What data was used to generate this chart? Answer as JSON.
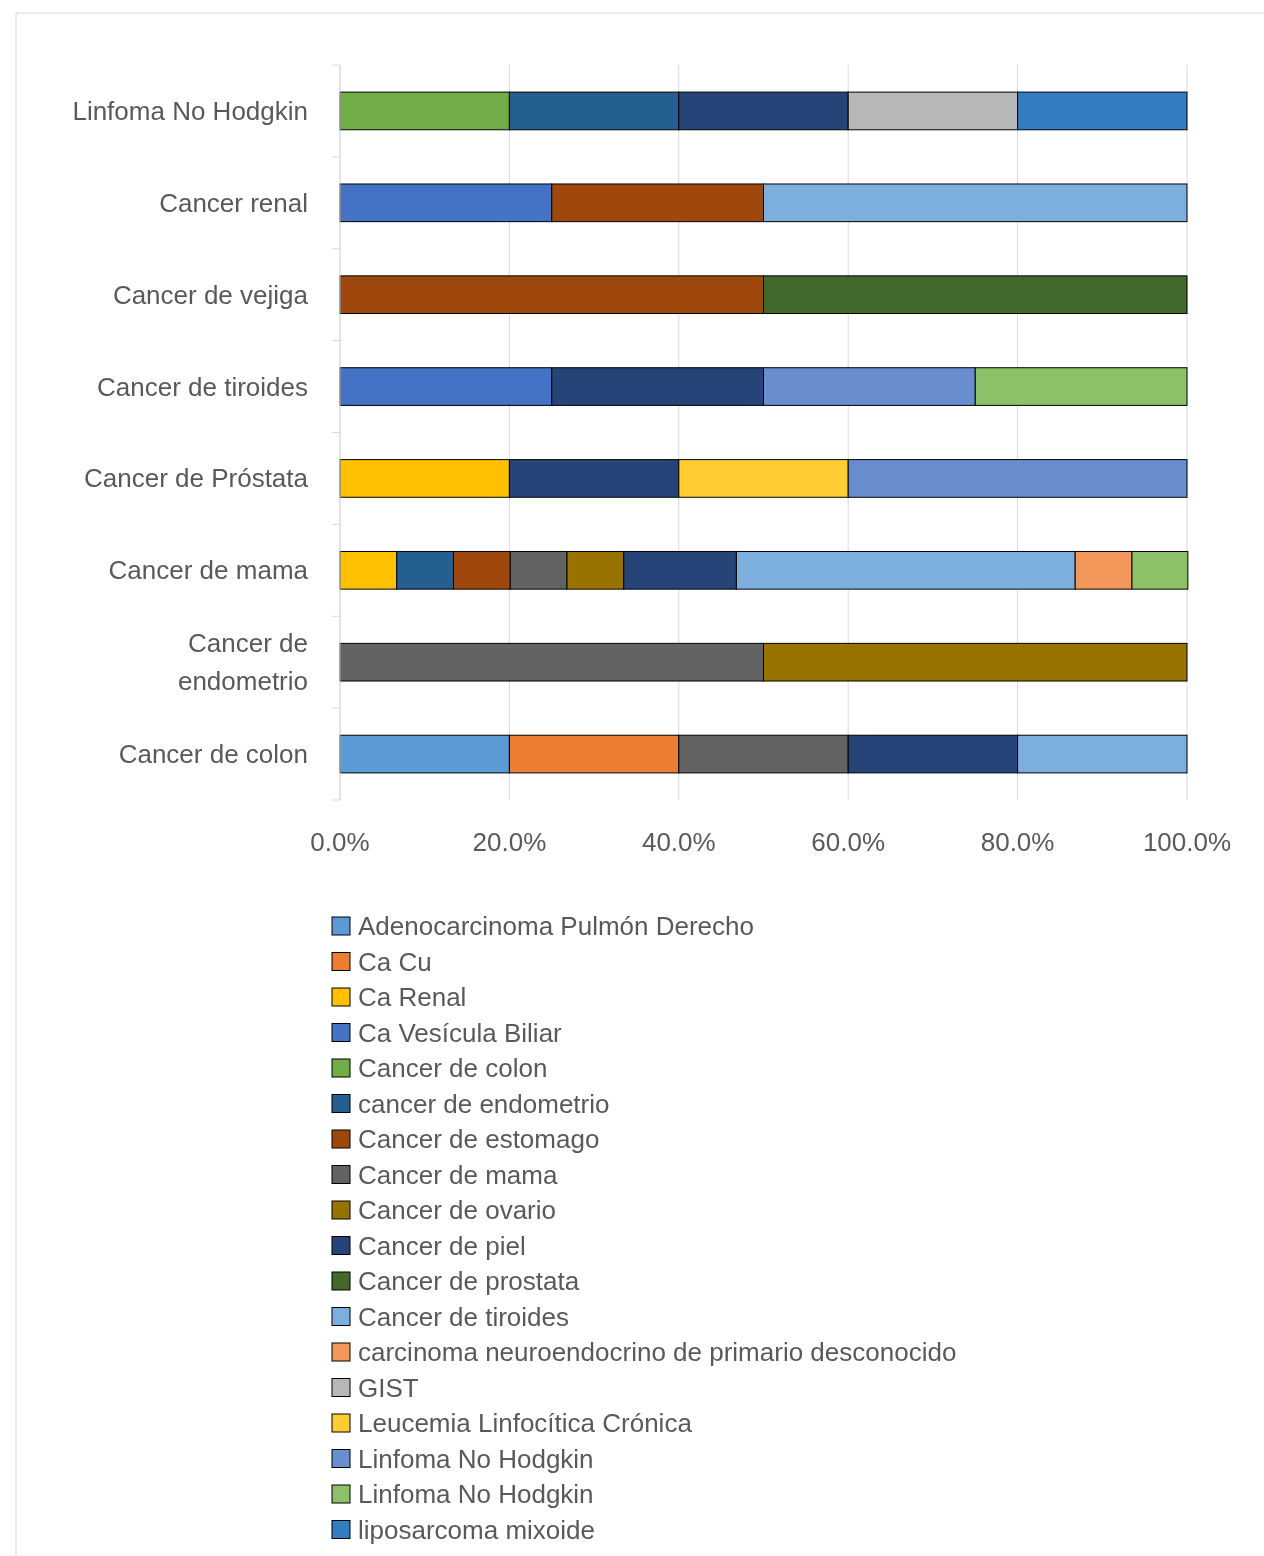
{
  "chart_data": {
    "type": "bar",
    "orientation": "horizontal",
    "stacked": true,
    "categories": [
      "Linfoma No Hodgkin",
      "Cancer renal",
      "Cancer de vejiga",
      "Cancer de tiroides",
      "Cancer de Próstata",
      "Cancer de mama",
      "Cancer de endometrio",
      "Cancer de colon"
    ],
    "series": [
      {
        "name": "Adenocarcinoma Pulmón Derecho",
        "color": "#5b9bd5",
        "values": [
          null,
          null,
          null,
          null,
          null,
          null,
          null,
          20
        ]
      },
      {
        "name": "Ca Cu",
        "color": "#ed7d31",
        "values": [
          null,
          null,
          null,
          null,
          null,
          null,
          null,
          20
        ]
      },
      {
        "name": "Ca Renal",
        "color": "#ffc000",
        "values": [
          null,
          null,
          null,
          null,
          20,
          6.7,
          null,
          null
        ]
      },
      {
        "name": "Ca Vesícula Biliar",
        "color": "#4472c4",
        "values": [
          null,
          25,
          null,
          25,
          null,
          null,
          null,
          null
        ]
      },
      {
        "name": "Cancer de colon",
        "color": "#70ad47",
        "values": [
          20,
          null,
          null,
          null,
          null,
          null,
          null,
          null
        ]
      },
      {
        "name": "cancer de endometrio",
        "color": "#255e91",
        "values": [
          20,
          null,
          null,
          null,
          null,
          6.7,
          null,
          null
        ]
      },
      {
        "name": "Cancer de estomago",
        "color": "#9e480e",
        "values": [
          null,
          25,
          50,
          null,
          null,
          6.7,
          null,
          null
        ]
      },
      {
        "name": "Cancer de mama",
        "color": "#636363",
        "values": [
          null,
          null,
          null,
          null,
          null,
          6.7,
          50,
          20
        ]
      },
      {
        "name": "Cancer de ovario",
        "color": "#997300",
        "values": [
          null,
          null,
          null,
          null,
          null,
          6.7,
          50,
          null
        ]
      },
      {
        "name": "Cancer de piel",
        "color": "#264478",
        "values": [
          20,
          null,
          null,
          25,
          20,
          13.3,
          null,
          20
        ]
      },
      {
        "name": "Cancer de prostata",
        "color": "#43682b",
        "values": [
          null,
          null,
          50,
          null,
          null,
          null,
          null,
          null
        ]
      },
      {
        "name": "Cancer de tiroides",
        "color": "#7cafdd",
        "values": [
          null,
          50,
          null,
          null,
          null,
          40,
          null,
          20
        ]
      },
      {
        "name": "carcinoma neuroendocrino de primario desconocido",
        "color": "#f1975a",
        "values": [
          null,
          null,
          null,
          null,
          null,
          6.7,
          null,
          null
        ]
      },
      {
        "name": "GIST",
        "color": "#b7b7b7",
        "values": [
          20,
          null,
          null,
          null,
          null,
          null,
          null,
          null
        ]
      },
      {
        "name": "Leucemia Linfocítica Crónica",
        "color": "#ffcd33",
        "values": [
          null,
          null,
          null,
          null,
          20,
          null,
          null,
          null
        ]
      },
      {
        "name": "Linfoma No Hodgkin",
        "color": "#698ed0",
        "values": [
          null,
          null,
          null,
          25,
          40,
          null,
          null,
          null
        ]
      },
      {
        "name": "Linfoma No Hodgkin",
        "color": "#8cc168",
        "values": [
          null,
          null,
          null,
          25,
          null,
          6.6,
          null,
          null
        ]
      },
      {
        "name": "liposarcoma mixoide",
        "color": "#327dc2",
        "values": [
          20,
          null,
          null,
          null,
          null,
          null,
          null,
          null
        ]
      }
    ],
    "xlim": [
      0,
      100
    ],
    "xticks": [
      {
        "value": 0,
        "label": "0.0%"
      },
      {
        "value": 20,
        "label": "20.0%"
      },
      {
        "value": 40,
        "label": "40.0%"
      },
      {
        "value": 60,
        "label": "60.0%"
      },
      {
        "value": 80,
        "label": "80.0%"
      },
      {
        "value": 100,
        "label": "100.0%"
      }
    ],
    "grid": "x",
    "legend": "bottom"
  }
}
